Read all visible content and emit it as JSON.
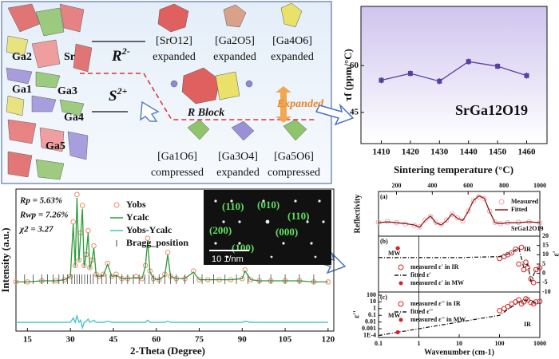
{
  "structure": {
    "sites": [
      "Ga2",
      "Sr",
      "Ga1",
      "Ga3",
      "Ga4",
      "Ga5"
    ],
    "R_block_charge": {
      "base": "R",
      "sup": "2-"
    },
    "S_block_charge": {
      "base": "S",
      "sup": "2+"
    },
    "polyhedra": [
      {
        "unit": "[SrO12]",
        "change": "expanded"
      },
      {
        "unit": "[Ga2O5]",
        "change": "expanded"
      },
      {
        "unit": "[Ga4O6]",
        "change": "expanded"
      },
      {
        "unit": "[Ga1O6]",
        "change": "compressed"
      },
      {
        "unit": "[Ga3O4]",
        "change": "expanded"
      },
      {
        "unit": "[Ga5O6]",
        "change": "compressed"
      }
    ],
    "arrow_label": "Expanded",
    "block_label": "R Block"
  },
  "saed": {
    "spots": [
      "(110)",
      "(010)",
      "(110)",
      "(200)",
      "(000)",
      "(100)"
    ],
    "scale_bar": "10 1/nm"
  },
  "chart_data": [
    {
      "type": "line",
      "x_label": "Sintering temperature (°C)",
      "y_label": "τf (ppm/°C)",
      "annotations": [
        "SrGa12O19"
      ],
      "x": [
        1410,
        1420,
        1430,
        1440,
        1450,
        1460
      ],
      "series": [
        {
          "color": "#5b3fa0",
          "values": [
            55.3,
            57.5,
            55,
            61.3,
            59.8,
            56.8
          ],
          "errors": [
            1,
            1,
            1,
            1,
            1,
            1
          ],
          "marker": "square"
        }
      ],
      "xlim": [
        1403,
        1467
      ],
      "xticks": [
        1410,
        1420,
        1430,
        1440,
        1450,
        1460
      ],
      "ylim": [
        35,
        79
      ],
      "yticks": [
        45,
        60
      ]
    },
    {
      "type": "line",
      "x_label": "2-Theta (Degree)",
      "y_label": "Intensity (a.u.)",
      "annotations": [
        "Rp = 5.63%",
        "Rwp = 7.26%",
        "χ2 = 3.27"
      ],
      "legend": "upper left",
      "x": [
        11,
        15,
        20,
        25,
        28,
        30,
        31,
        31.7,
        32.3,
        33,
        33.6,
        34.2,
        34.8,
        35.5,
        36.2,
        36.8,
        37.5,
        38.2,
        39,
        40,
        41.5,
        43,
        44.5,
        46,
        48,
        50,
        53,
        55,
        56.2,
        57,
        57.8,
        59,
        61,
        63,
        64,
        65,
        67,
        70,
        73,
        75,
        78,
        82,
        86,
        90,
        91,
        93,
        96,
        100,
        105,
        110,
        115,
        120
      ],
      "series": [
        {
          "name": "Yobs",
          "color": "#f08a6a",
          "style": "circles",
          "values": [
            15,
            15,
            16,
            16,
            17,
            20,
            70,
            30,
            95,
            35,
            60,
            85,
            30,
            40,
            62,
            28,
            35,
            48,
            22,
            20,
            22,
            32,
            20,
            22,
            18,
            18,
            20,
            18,
            30,
            55,
            25,
            18,
            17,
            22,
            42,
            20,
            18,
            18,
            25,
            17,
            17,
            17,
            17,
            18,
            26,
            17,
            16,
            16,
            16,
            16,
            15,
            15
          ]
        },
        {
          "name": "Ycalc",
          "color": "#2e9b3a",
          "style": "line",
          "values": [
            15,
            15,
            16,
            16,
            17,
            20,
            68,
            29,
            92,
            34,
            58,
            82,
            29,
            39,
            60,
            27,
            34,
            46,
            21,
            20,
            21,
            31,
            20,
            21,
            18,
            18,
            19,
            18,
            29,
            53,
            24,
            18,
            17,
            21,
            40,
            20,
            18,
            18,
            24,
            17,
            17,
            17,
            17,
            18,
            25,
            17,
            16,
            16,
            16,
            16,
            15,
            15
          ]
        },
        {
          "name": "Yobs-Ycalc",
          "color": "#3cc3c8",
          "style": "line",
          "values": [
            -22,
            -22,
            -22,
            -22,
            -22,
            -22,
            -18,
            -22,
            -16,
            -22,
            -20,
            -27,
            -22,
            -21,
            -19,
            -22,
            -21,
            -20,
            -22,
            -22,
            -22,
            -21,
            -22,
            -22,
            -22,
            -22,
            -22,
            -22,
            -22,
            -20,
            -22,
            -22,
            -22,
            -22,
            -21,
            -22,
            -22,
            -22,
            -22,
            -22,
            -22,
            -22,
            -22,
            -22,
            -21,
            -22,
            -22,
            -22,
            -22,
            -22,
            -22,
            -22
          ]
        },
        {
          "name": "Bragg_position",
          "color": "#444444",
          "style": "ticks",
          "x": [
            14,
            17,
            20,
            22,
            24,
            26,
            27.5,
            29,
            30.5,
            31.5,
            32.3,
            33.2,
            34,
            35,
            36,
            37,
            38,
            39.5,
            41,
            42.5,
            44,
            46,
            48,
            50,
            52,
            54,
            56,
            57.5,
            59,
            61,
            63,
            65,
            67,
            70,
            73,
            76,
            80,
            84,
            88,
            92,
            96,
            100,
            105,
            110,
            115
          ]
        }
      ],
      "xlim": [
        11,
        122
      ],
      "xticks": [
        15,
        30,
        45,
        60,
        75,
        90,
        105,
        120
      ],
      "ylim": [
        -30,
        100
      ]
    },
    {
      "type": "line",
      "y_label": "Reflectivity",
      "annotations": [
        "(a)",
        "SrGa12O19"
      ],
      "legend": "upper right",
      "x_axis_side": "top",
      "x": [
        100,
        150,
        200,
        250,
        300,
        330,
        360,
        390,
        420,
        450,
        480,
        510,
        540,
        570,
        600,
        630,
        660,
        690,
        720,
        750,
        780,
        820,
        880,
        940,
        1000
      ],
      "series": [
        {
          "name": "Measured",
          "color": "#f4a6b0",
          "style": "circles",
          "values": [
            0.31,
            0.33,
            0.3,
            0.27,
            0.24,
            0.21,
            0.36,
            0.44,
            0.31,
            0.26,
            0.36,
            0.49,
            0.41,
            0.34,
            0.56,
            0.79,
            0.88,
            0.84,
            0.56,
            0.31,
            0.28,
            0.3,
            0.31,
            0.32,
            0.3
          ]
        },
        {
          "name": "Fitted",
          "color": "#8b1a1a",
          "style": "line",
          "values": [
            0.3,
            0.32,
            0.3,
            0.28,
            0.25,
            0.2,
            0.35,
            0.45,
            0.3,
            0.25,
            0.35,
            0.5,
            0.4,
            0.35,
            0.55,
            0.8,
            0.9,
            0.85,
            0.55,
            0.3,
            0.28,
            0.3,
            0.3,
            0.32,
            0.3
          ]
        }
      ],
      "xlim": [
        100,
        1000
      ],
      "xticks": [
        200,
        400,
        600,
        800,
        1000
      ],
      "ylim": [
        0,
        1
      ]
    },
    {
      "type": "line",
      "y_label": "ε'",
      "annotations": [
        "(b)",
        "MW",
        "IR"
      ],
      "legend": "lower left",
      "xscale": "log",
      "y_axis_side": "right",
      "series": [
        {
          "name": "measured ε' in IR",
          "color": "#d62020",
          "style": "circles",
          "x": [
            100,
            130,
            160,
            200,
            250,
            300,
            350,
            400,
            450,
            500,
            600,
            700,
            800,
            1000
          ],
          "values": [
            8,
            9,
            10,
            11,
            13,
            5,
            14,
            2,
            6,
            3,
            -3,
            -5,
            2,
            3
          ]
        },
        {
          "name": "fitted ε'",
          "color": "#222222",
          "style": "dash",
          "x": [
            0.1,
            1,
            10,
            100,
            200,
            300,
            400,
            500,
            600,
            800,
            1000
          ],
          "values": [
            8.5,
            8.5,
            8.5,
            9,
            11,
            14,
            3,
            5,
            -4,
            2,
            3
          ]
        },
        {
          "name": "measured ε' in MW",
          "color": "#d62020",
          "style": "dots",
          "x": [
            0.3
          ],
          "values": [
            13.5
          ]
        }
      ],
      "xlim": [
        0.1,
        1000
      ],
      "ylim": [
        -10,
        20
      ],
      "yticks": [
        -10,
        -5,
        0,
        5,
        10,
        15,
        20
      ]
    },
    {
      "type": "line",
      "x_label": "Wavenumber (cm-1)",
      "y_label": "ε''",
      "annotations": [
        "(c)",
        "MW",
        "IR"
      ],
      "legend": "upper left",
      "xscale": "log",
      "yscale": "log",
      "series": [
        {
          "name": "measured ε'' in IR",
          "color": "#d62020",
          "style": "circles",
          "x": [
            100,
            130,
            160,
            200,
            250,
            300,
            350,
            400,
            450,
            500,
            600,
            700,
            800,
            1000
          ],
          "values": [
            0.5,
            1,
            2,
            5,
            10,
            20,
            5,
            10,
            30,
            20,
            8,
            5,
            10,
            12
          ]
        },
        {
          "name": "fitted ε''",
          "color": "#222222",
          "style": "dash",
          "x": [
            0.1,
            1,
            10,
            100,
            300,
            500,
            1000
          ],
          "values": [
            0.0001,
            0.001,
            0.01,
            0.1,
            10,
            20,
            5
          ]
        },
        {
          "name": "measured ε'' in MW",
          "color": "#d62020",
          "style": "dots",
          "x": [
            0.3
          ],
          "values": [
            0.0003
          ]
        }
      ],
      "xlim": [
        0.1,
        1000
      ],
      "xticks": [
        0.1,
        1,
        10,
        100,
        1000
      ],
      "ylim": [
        5e-05,
        300
      ],
      "yticks": [
        {
          "value": 0.0001,
          "label": "1E-4"
        },
        0.001,
        0.01,
        0.1,
        1,
        10,
        100
      ]
    }
  ]
}
